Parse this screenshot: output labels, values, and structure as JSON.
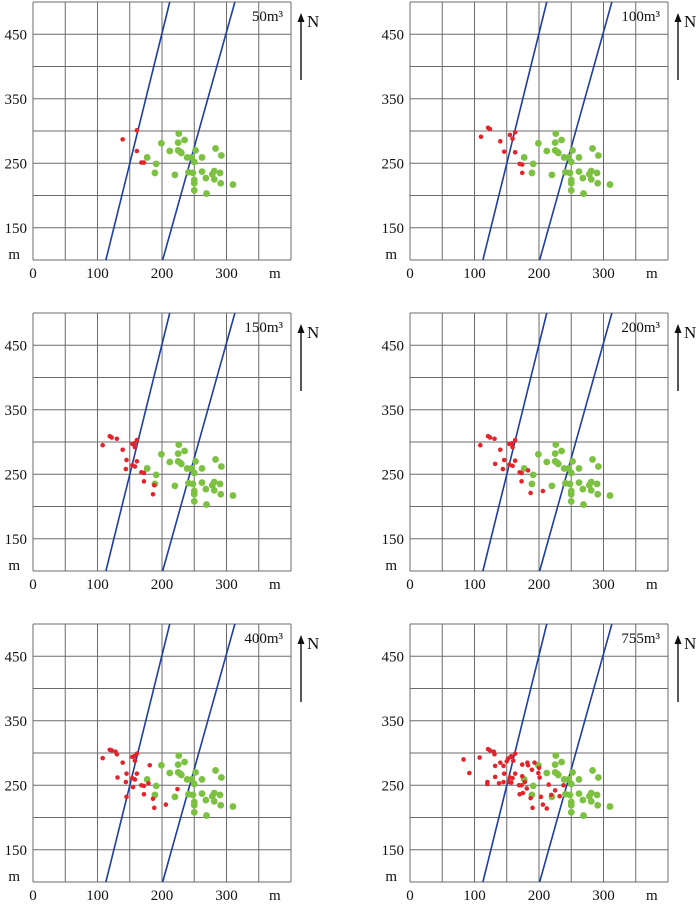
{
  "figure": {
    "axis_unit": "m",
    "north_label": "N",
    "x_ticks": [
      "0",
      "100",
      "200",
      "300"
    ],
    "y_ticks": [
      "450",
      "350",
      "250",
      "150"
    ]
  },
  "colors": {
    "grid": "#6b6b6b",
    "fault": "#1f3e9e",
    "green": "#7cc142",
    "red": "#e5232b"
  },
  "chart_data": [
    {
      "type": "scatter",
      "title": "50m³",
      "xlabel": "m",
      "ylabel": "m",
      "xlim": [
        0,
        400
      ],
      "ylim": [
        100,
        500
      ],
      "grid": true,
      "grid_step": 50,
      "lines": [
        {
          "name": "fault-1",
          "points": [
            [
              113,
              100
            ],
            [
              212,
              500
            ]
          ]
        },
        {
          "name": "fault-2",
          "points": [
            [
              201,
              100
            ],
            [
              313,
              500
            ]
          ]
        }
      ],
      "series": [
        {
          "name": "red",
          "points": [
            [
              139,
              287
            ],
            [
              161,
              301
            ],
            [
              161,
              269
            ],
            [
              168,
              251
            ],
            [
              172,
              251
            ]
          ]
        }
      ]
    },
    {
      "type": "scatter",
      "title": "100m³",
      "xlabel": "m",
      "ylabel": "m",
      "xlim": [
        0,
        400
      ],
      "ylim": [
        100,
        500
      ],
      "grid": true,
      "grid_step": 50,
      "lines": [
        {
          "name": "fault-1",
          "points": [
            [
              113,
              100
            ],
            [
              212,
              500
            ]
          ]
        },
        {
          "name": "fault-2",
          "points": [
            [
              201,
              100
            ],
            [
              313,
              500
            ]
          ]
        }
      ],
      "series": [
        {
          "name": "red",
          "points": [
            [
              121,
              305
            ],
            [
              124,
              303
            ],
            [
              110,
              291
            ],
            [
              140,
              284
            ],
            [
              155,
              294
            ],
            [
              159,
              288
            ],
            [
              163,
              298
            ],
            [
              146,
              268
            ],
            [
              163,
              267
            ],
            [
              170,
              249
            ],
            [
              174,
              248
            ],
            [
              174,
              235
            ]
          ]
        }
      ]
    },
    {
      "type": "scatter",
      "title": "150m³",
      "xlabel": "m",
      "ylabel": "m",
      "xlim": [
        0,
        400
      ],
      "ylim": [
        100,
        500
      ],
      "grid": true,
      "grid_step": 50,
      "lines": [
        {
          "name": "fault-1",
          "points": [
            [
              113,
              100
            ],
            [
              212,
              500
            ]
          ]
        },
        {
          "name": "fault-2",
          "points": [
            [
              201,
              100
            ],
            [
              313,
              500
            ]
          ]
        }
      ],
      "series": [
        {
          "name": "red",
          "points": [
            [
              119,
              309
            ],
            [
              122,
              307
            ],
            [
              130,
              305
            ],
            [
              108,
              295
            ],
            [
              139,
              288
            ],
            [
              154,
              297
            ],
            [
              157,
              298
            ],
            [
              161,
              303
            ],
            [
              158,
              292
            ],
            [
              145,
              272
            ],
            [
              161,
              270
            ],
            [
              154,
              264
            ],
            [
              158,
              262
            ],
            [
              144,
              258
            ],
            [
              168,
              253
            ],
            [
              172,
              252
            ],
            [
              172,
              239
            ],
            [
              188,
              233
            ],
            [
              186,
              219
            ]
          ]
        }
      ]
    },
    {
      "type": "scatter",
      "title": "200m³",
      "xlabel": "m",
      "ylabel": "m",
      "xlim": [
        0,
        400
      ],
      "ylim": [
        100,
        500
      ],
      "grid": true,
      "grid_step": 50,
      "lines": [
        {
          "name": "fault-1",
          "points": [
            [
              113,
              100
            ],
            [
              212,
              500
            ]
          ]
        },
        {
          "name": "fault-2",
          "points": [
            [
              201,
              100
            ],
            [
              313,
              500
            ]
          ]
        }
      ],
      "series": [
        {
          "name": "red",
          "points": [
            [
              121,
              309
            ],
            [
              124,
              307
            ],
            [
              131,
              305
            ],
            [
              109,
              295
            ],
            [
              140,
              288
            ],
            [
              154,
              297
            ],
            [
              158,
              298
            ],
            [
              163,
              303
            ],
            [
              159,
              292
            ],
            [
              146,
              272
            ],
            [
              163,
              271
            ],
            [
              132,
              266
            ],
            [
              154,
              265
            ],
            [
              159,
              263
            ],
            [
              144,
              258
            ],
            [
              170,
              253
            ],
            [
              173,
              252
            ],
            [
              183,
              256
            ],
            [
              173,
              239
            ],
            [
              187,
              221
            ],
            [
              206,
              224
            ]
          ]
        }
      ]
    },
    {
      "type": "scatter",
      "title": "400m³",
      "xlabel": "m",
      "ylabel": "m",
      "xlim": [
        0,
        400
      ],
      "ylim": [
        100,
        500
      ],
      "grid": true,
      "grid_step": 50,
      "lines": [
        {
          "name": "fault-1",
          "points": [
            [
              113,
              100
            ],
            [
              212,
              500
            ]
          ]
        },
        {
          "name": "fault-2",
          "points": [
            [
              201,
              100
            ],
            [
              313,
              500
            ]
          ]
        }
      ],
      "series": [
        {
          "name": "red",
          "points": [
            [
              119,
              305
            ],
            [
              122,
              304
            ],
            [
              128,
              302
            ],
            [
              130,
              298
            ],
            [
              108,
              292
            ],
            [
              139,
              285
            ],
            [
              154,
              294
            ],
            [
              157,
              295
            ],
            [
              161,
              299
            ],
            [
              158,
              288
            ],
            [
              145,
              268
            ],
            [
              161,
              268
            ],
            [
              154,
              261
            ],
            [
              158,
              259
            ],
            [
              131,
              262
            ],
            [
              144,
              255
            ],
            [
              168,
              250
            ],
            [
              172,
              249
            ],
            [
              172,
              236
            ],
            [
              181,
              281
            ],
            [
              179,
              253
            ],
            [
              155,
              247
            ],
            [
              145,
              232
            ],
            [
              186,
              229
            ],
            [
              188,
              215
            ],
            [
              206,
              220
            ],
            [
              224,
              244
            ]
          ]
        }
      ]
    },
    {
      "type": "scatter",
      "title": "755m³",
      "xlabel": "m",
      "ylabel": "m",
      "xlim": [
        0,
        400
      ],
      "ylim": [
        100,
        500
      ],
      "grid": true,
      "grid_step": 50,
      "lines": [
        {
          "name": "fault-1",
          "points": [
            [
              113,
              100
            ],
            [
              212,
              500
            ]
          ]
        },
        {
          "name": "fault-2",
          "points": [
            [
              201,
              100
            ],
            [
              313,
              500
            ]
          ]
        }
      ],
      "series": [
        {
          "name": "red",
          "points": [
            [
              83,
              290
            ],
            [
              92,
              269
            ],
            [
              108,
              293
            ],
            [
              121,
              306
            ],
            [
              124,
              304
            ],
            [
              130,
              302
            ],
            [
              131,
              298
            ],
            [
              163,
              299
            ],
            [
              156,
              294
            ],
            [
              152,
              291
            ],
            [
              157,
              295
            ],
            [
              150,
              287
            ],
            [
              160,
              288
            ],
            [
              140,
              285
            ],
            [
              145,
              280
            ],
            [
              132,
              280
            ],
            [
              146,
              268
            ],
            [
              163,
              268
            ],
            [
              132,
              263
            ],
            [
              120,
              255
            ],
            [
              120,
              252
            ],
            [
              138,
              253
            ],
            [
              145,
              255
            ],
            [
              155,
              262
            ],
            [
              159,
              261
            ],
            [
              154,
              255
            ],
            [
              157,
              254
            ],
            [
              169,
              250
            ],
            [
              173,
              250
            ],
            [
              174,
              264
            ],
            [
              174,
              282
            ],
            [
              182,
              285
            ],
            [
              183,
              281
            ],
            [
              189,
              274
            ],
            [
              193,
              285
            ],
            [
              200,
              277
            ],
            [
              199,
              269
            ],
            [
              201,
              262
            ],
            [
              178,
              255
            ],
            [
              181,
              245
            ],
            [
              175,
              238
            ],
            [
              170,
              236
            ],
            [
              187,
              230
            ],
            [
              203,
              232
            ],
            [
              206,
              220
            ],
            [
              212,
              214
            ],
            [
              190,
              215
            ],
            [
              215,
              251
            ],
            [
              225,
              242
            ],
            [
              219,
              235
            ],
            [
              232,
              233
            ],
            [
              238,
              250
            ]
          ]
        }
      ]
    }
  ],
  "green_points": [
    [
      226,
      296
    ],
    [
      235,
      286
    ],
    [
      199,
      281
    ],
    [
      225,
      282
    ],
    [
      212,
      269
    ],
    [
      225,
      270
    ],
    [
      228,
      268
    ],
    [
      230,
      266
    ],
    [
      252,
      270
    ],
    [
      283,
      273
    ],
    [
      177,
      259
    ],
    [
      239,
      259
    ],
    [
      246,
      259
    ],
    [
      262,
      259
    ],
    [
      292,
      262
    ],
    [
      250,
      252
    ],
    [
      191,
      249
    ],
    [
      189,
      235
    ],
    [
      220,
      232
    ],
    [
      241,
      236
    ],
    [
      248,
      235
    ],
    [
      262,
      237
    ],
    [
      281,
      238
    ],
    [
      278,
      233
    ],
    [
      290,
      235
    ],
    [
      250,
      224
    ],
    [
      250,
      219
    ],
    [
      268,
      227
    ],
    [
      281,
      225
    ],
    [
      291,
      219
    ],
    [
      310,
      217
    ],
    [
      250,
      208
    ],
    [
      269,
      203
    ]
  ]
}
